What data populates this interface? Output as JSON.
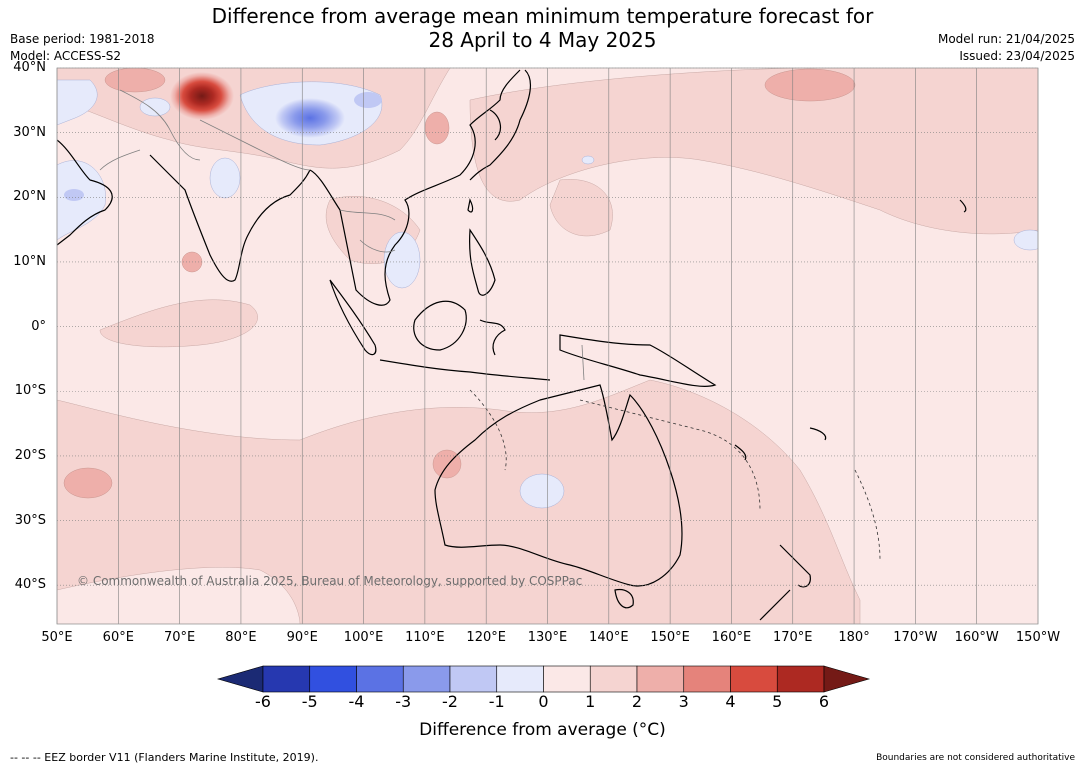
{
  "header": {
    "title_line1": "Difference from average mean minimum temperature forecast for",
    "title_line2": "28 April to 4 May 2025",
    "base_period": "Base period: 1981-2018",
    "model": "Model: ACCESS-S2",
    "model_run": "Model run: 21/04/2025",
    "issued": "Issued: 23/04/2025"
  },
  "map": {
    "latitude_labels": [
      "40°N",
      "30°N",
      "20°N",
      "10°N",
      "0°",
      "10°S",
      "20°S",
      "30°S",
      "40°S"
    ],
    "longitude_labels": [
      "50°E",
      "60°E",
      "70°E",
      "80°E",
      "90°E",
      "100°E",
      "110°E",
      "120°E",
      "130°E",
      "140°E",
      "150°E",
      "160°E",
      "170°E",
      "180°",
      "170°W",
      "160°W",
      "150°W"
    ],
    "extent": {
      "lon_min": 50,
      "lon_max": 210,
      "lat_min": -46,
      "lat_max": 40
    },
    "copyright": "© Commonwealth of Australia 2025, Bureau of Meteorology, supported by COSPPac"
  },
  "legend": {
    "title": "Difference from average (°C)",
    "ticks": [
      "-6",
      "-5",
      "-4",
      "-3",
      "-2",
      "-1",
      "0",
      "1",
      "2",
      "3",
      "4",
      "5",
      "6"
    ],
    "colors": [
      "#1b2a74",
      "#2638b0",
      "#3150e0",
      "#5b72e4",
      "#8a9aeb",
      "#c0c8f4",
      "#e6eafb",
      "#fbe8e7",
      "#f5d4d1",
      "#eeafaa",
      "#e5837b",
      "#d84b3e",
      "#ad2922",
      "#741a16"
    ]
  },
  "footer": {
    "eez_note": "--  --  -- EEZ border V11 (Flanders Marine Institute, 2019).",
    "disclaimer": "Boundaries are not considered authoritative"
  }
}
